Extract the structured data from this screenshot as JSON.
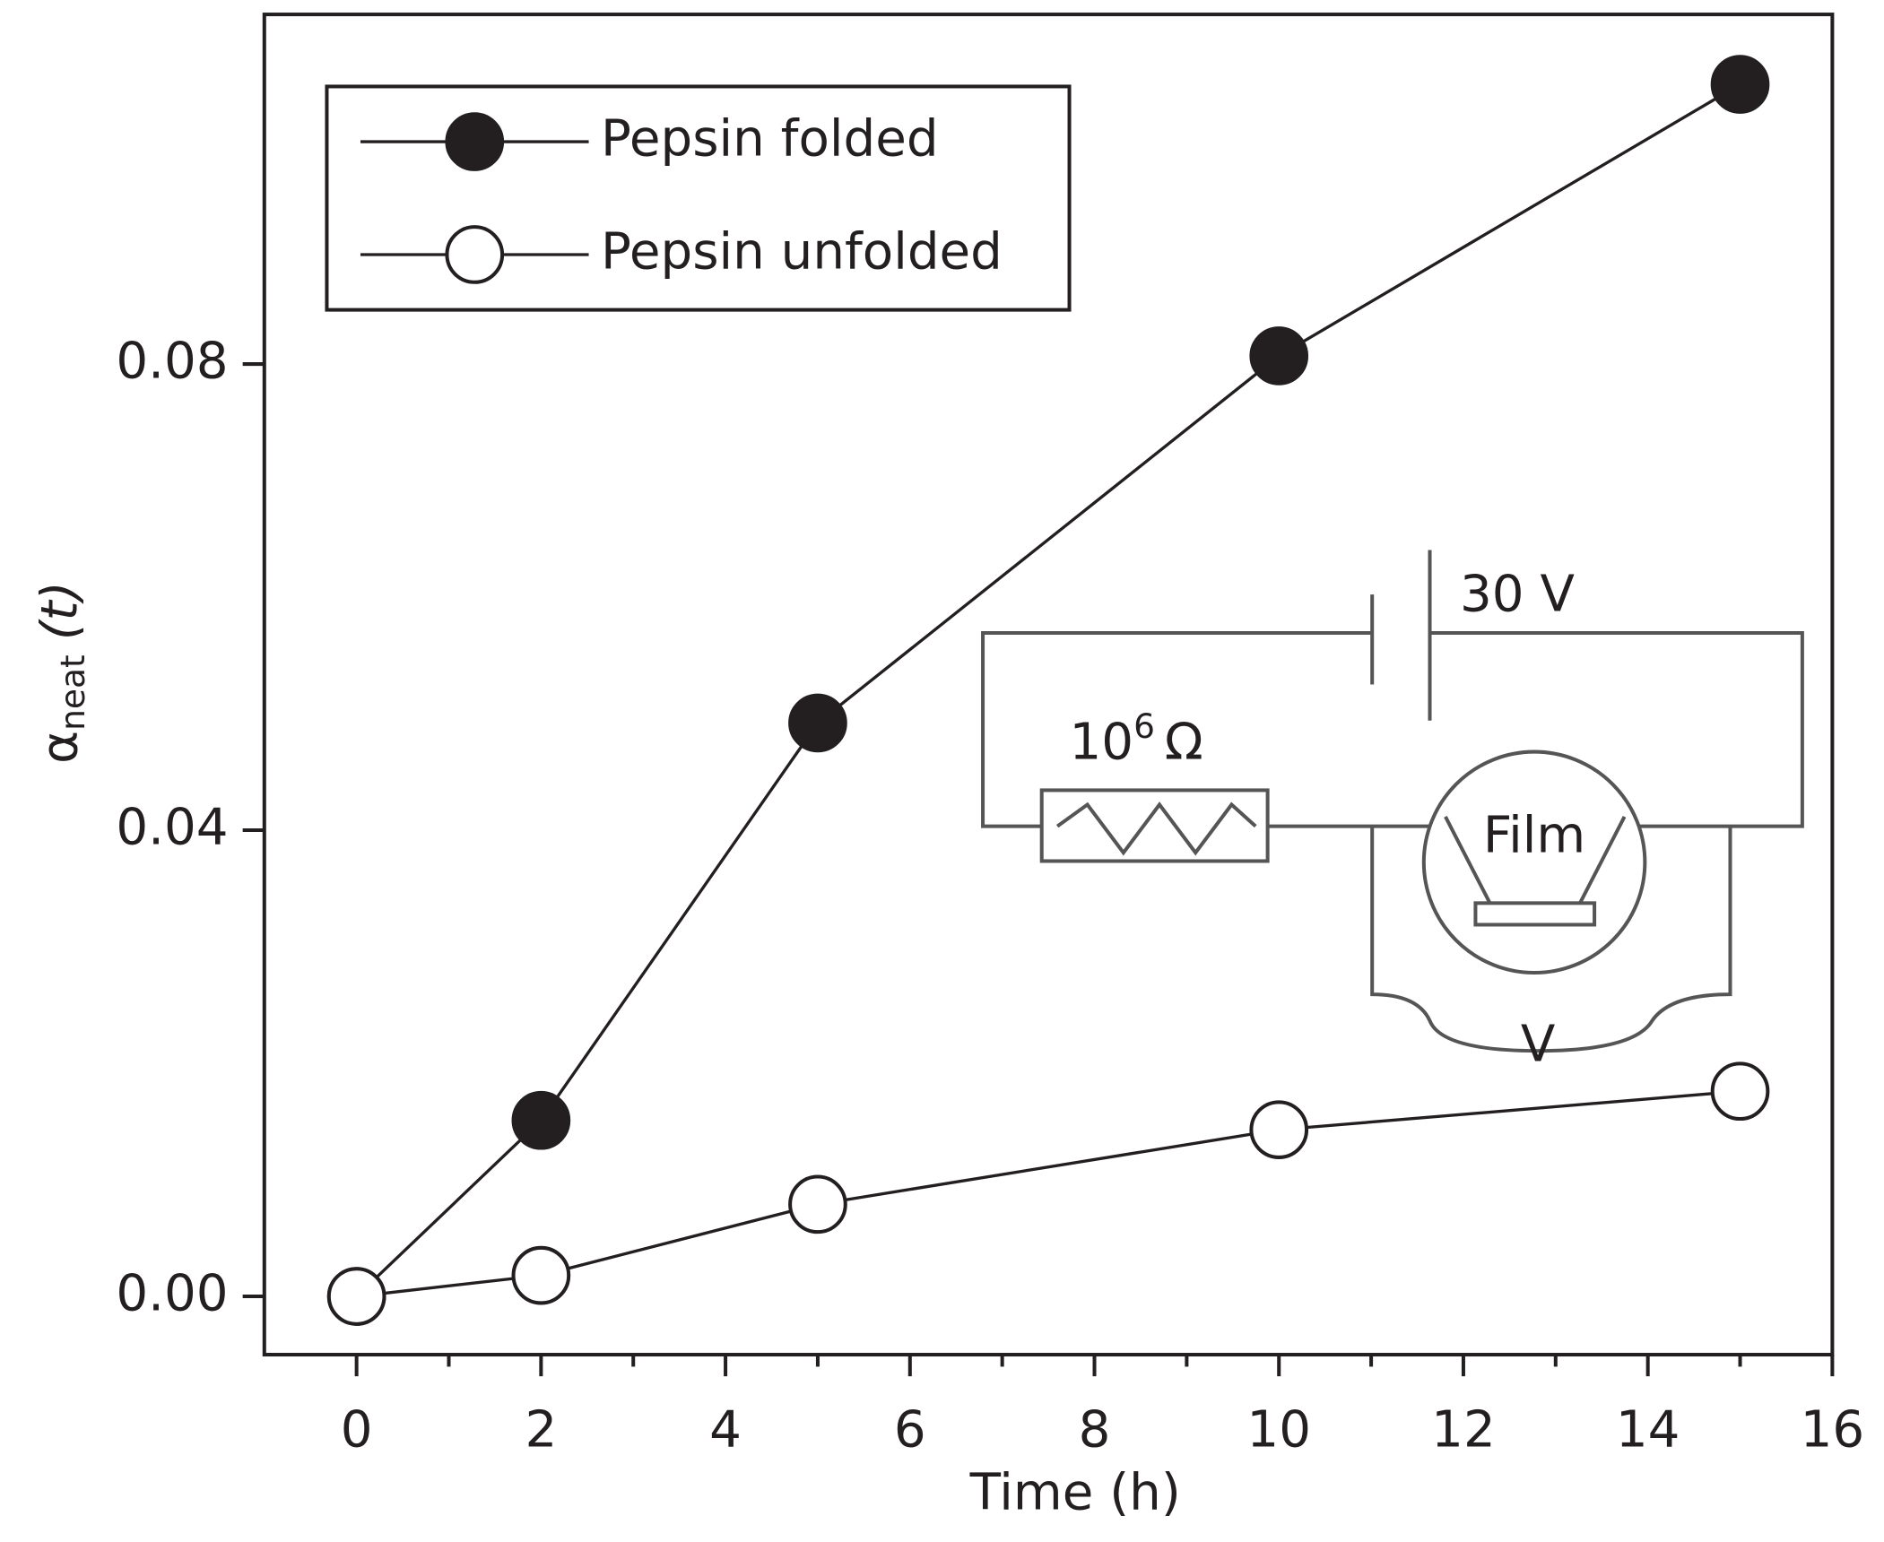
{
  "chart_data": {
    "type": "line",
    "xlabel": "Time (h)",
    "ylabel": {
      "symbol": "α",
      "subscript": "neat",
      "argument": "(t)"
    },
    "x": [
      0,
      2,
      5,
      10,
      15
    ],
    "series": [
      {
        "name": "Pepsin folded",
        "color": "#231f20",
        "marker_face": "#231f20",
        "values": [
          0,
          0.0151,
          0.0492,
          0.0807,
          0.104
        ]
      },
      {
        "name": "Pepsin unfolded",
        "color": "#231f20",
        "marker_face": "#ffffff",
        "values": [
          0,
          0.0018,
          0.0079,
          0.0143,
          0.0176
        ]
      }
    ],
    "xlim": [
      -1,
      16
    ],
    "xticks": [
      0,
      2,
      4,
      6,
      8,
      10,
      12,
      14,
      16
    ],
    "ylim": [
      -0.005,
      0.11
    ],
    "yticks": [
      {
        "value": 0,
        "label": "0.00"
      },
      0.04,
      0.08
    ],
    "legend": "upper left",
    "inset": {
      "battery": "30 V",
      "resistor_base": "10",
      "resistor_exponent": "6",
      "resistor_unit": "Ω",
      "sample": "Film",
      "meter": "V"
    }
  }
}
